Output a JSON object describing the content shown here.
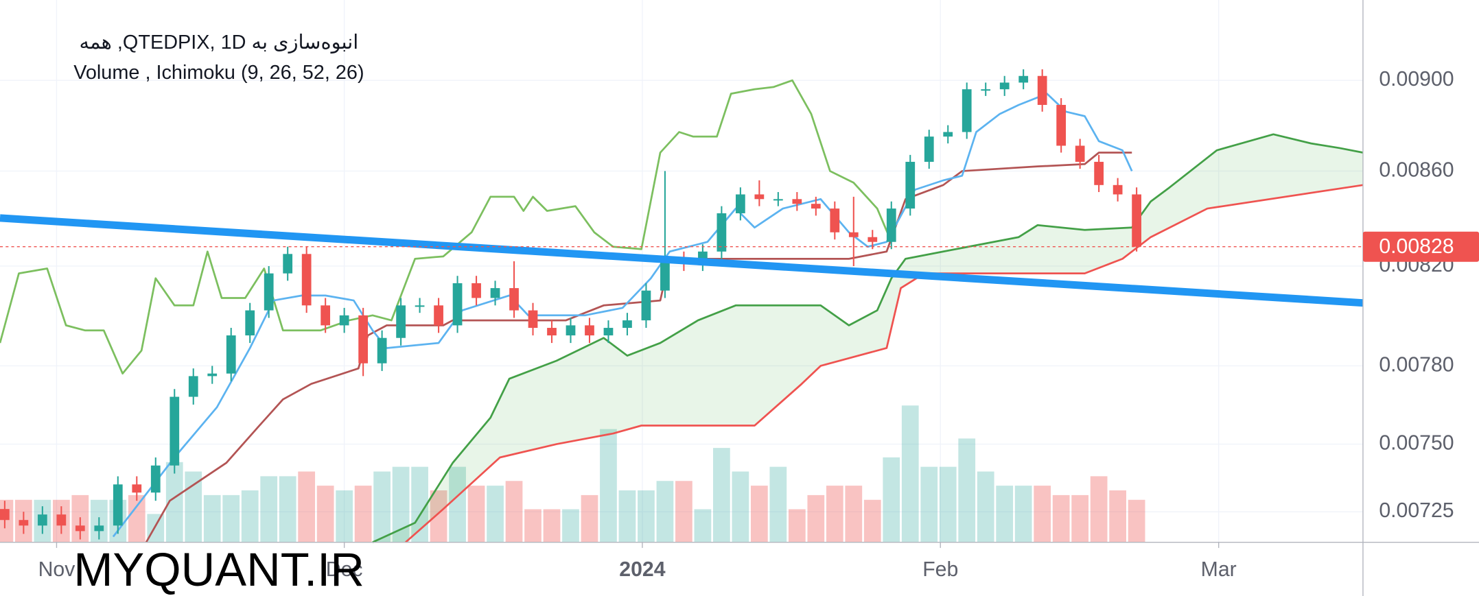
{
  "chart_data": {
    "type": "candlestick",
    "title": "انبوه‌سازی به QTEDPIX, 1D, همه",
    "subtitle": "Volume , Ichimoku (9, 26, 52, 26)",
    "watermark": "MYQUANT.IR",
    "log_scale": true,
    "grid": true,
    "xlim": [
      -0.25,
      72
    ],
    "ylim": [
      0.00714,
      0.00937
    ],
    "xticks": [
      {
        "value": 2.75,
        "label": "Nov"
      },
      {
        "value": 18,
        "label": "Dec"
      },
      {
        "value": 33.8,
        "label": "2024",
        "bold": true
      },
      {
        "value": 49.6,
        "label": "Feb"
      },
      {
        "value": 64.35,
        "label": "Mar"
      }
    ],
    "yticks": [
      0.00725,
      {
        "value": 0.0075,
        "label": "0.00750"
      },
      {
        "value": 0.0078,
        "label": "0.00780"
      },
      {
        "value": 0.0082,
        "label": "0.00820"
      },
      {
        "value": 0.0086,
        "label": "0.00860"
      },
      {
        "value": 0.009,
        "label": "0.00900"
      }
    ],
    "up_color": "#26a69a",
    "down_color": "#ef5350",
    "open": [
      0.00726,
      0.00722,
      0.0072,
      0.00724,
      0.0072,
      0.00718,
      0.0072,
      0.00735,
      0.00732,
      0.00742,
      0.00768,
      0.00776,
      0.00777,
      0.00792,
      0.00802,
      0.00817,
      0.00825,
      0.00804,
      0.00796,
      0.008,
      0.00781,
      0.00791,
      0.00804,
      0.00804,
      0.00796,
      0.00813,
      0.00807,
      0.00811,
      0.00802,
      0.00795,
      0.00792,
      0.00796,
      0.00792,
      0.00795,
      0.00798,
      0.0081,
      0.00823,
      0.00821,
      0.00826,
      0.00842,
      0.0085,
      0.00848,
      0.00848,
      0.00846,
      0.00844,
      0.00834,
      0.00832,
      0.0083,
      0.00844,
      0.00864,
      0.00875,
      0.00877,
      0.00896,
      0.00896,
      0.00899,
      0.00902,
      0.00889,
      0.00871,
      0.00864,
      0.00854,
      0.0085
    ],
    "high": [
      0.00729,
      0.00725,
      0.00727,
      0.00727,
      0.00723,
      0.00723,
      0.00738,
      0.00738,
      0.00745,
      0.00771,
      0.00779,
      0.0078,
      0.00795,
      0.00805,
      0.0082,
      0.00828,
      0.00828,
      0.00807,
      0.00803,
      0.00803,
      0.00794,
      0.00807,
      0.00807,
      0.00807,
      0.00816,
      0.00816,
      0.00814,
      0.00822,
      0.00805,
      0.00798,
      0.00799,
      0.00799,
      0.00798,
      0.00801,
      0.00813,
      0.0086,
      0.00826,
      0.00829,
      0.00845,
      0.00853,
      0.00856,
      0.00851,
      0.00851,
      0.00849,
      0.00847,
      0.00849,
      0.00835,
      0.00847,
      0.00867,
      0.00878,
      0.0088,
      0.00899,
      0.00899,
      0.00902,
      0.00905,
      0.00905,
      0.00892,
      0.00874,
      0.00867,
      0.00857,
      0.00853
    ],
    "low": [
      0.00719,
      0.00717,
      0.00717,
      0.00717,
      0.00715,
      0.00715,
      0.00717,
      0.00729,
      0.00729,
      0.00739,
      0.00765,
      0.00773,
      0.00774,
      0.00789,
      0.00799,
      0.00814,
      0.00801,
      0.00793,
      0.00793,
      0.00776,
      0.00778,
      0.00788,
      0.00801,
      0.00793,
      0.00793,
      0.00804,
      0.00804,
      0.00799,
      0.00792,
      0.00789,
      0.00789,
      0.00789,
      0.00789,
      0.00792,
      0.00795,
      0.00807,
      0.00818,
      0.00818,
      0.00823,
      0.00839,
      0.00845,
      0.00845,
      0.00843,
      0.00841,
      0.00831,
      0.0082,
      0.00827,
      0.00827,
      0.00841,
      0.00861,
      0.00872,
      0.00874,
      0.00893,
      0.00893,
      0.00896,
      0.00886,
      0.00868,
      0.00861,
      0.00851,
      0.00847,
      0.00826
    ],
    "close": [
      0.00722,
      0.0072,
      0.00724,
      0.0072,
      0.00718,
      0.0072,
      0.00735,
      0.00732,
      0.00742,
      0.00768,
      0.00776,
      0.00777,
      0.00792,
      0.00802,
      0.00817,
      0.00825,
      0.00804,
      0.00796,
      0.008,
      0.00781,
      0.00791,
      0.00804,
      0.00804,
      0.00796,
      0.00813,
      0.00807,
      0.00811,
      0.00802,
      0.00795,
      0.00792,
      0.00796,
      0.00792,
      0.00795,
      0.00798,
      0.0081,
      0.00823,
      0.00821,
      0.00826,
      0.00842,
      0.0085,
      0.00848,
      0.00848,
      0.00846,
      0.00844,
      0.00834,
      0.00832,
      0.0083,
      0.00844,
      0.00864,
      0.00875,
      0.00877,
      0.00896,
      0.00896,
      0.00899,
      0.00902,
      0.00889,
      0.00871,
      0.00864,
      0.00854,
      0.0085,
      0.00828
    ],
    "volume": [
      45,
      45,
      45,
      45,
      50,
      45,
      45,
      50,
      30,
      85,
      75,
      50,
      50,
      55,
      70,
      70,
      75,
      60,
      55,
      60,
      75,
      80,
      80,
      55,
      80,
      60,
      60,
      65,
      35,
      35,
      35,
      50,
      120,
      55,
      55,
      65,
      65,
      35,
      100,
      75,
      60,
      80,
      35,
      50,
      60,
      60,
      45,
      90,
      145,
      80,
      80,
      110,
      75,
      60,
      60,
      60,
      50,
      50,
      70,
      55,
      45
    ],
    "last_price": 0.00828,
    "last_price_color": "#ef5350",
    "trendline": {
      "color": "#2196f3",
      "x": [
        -0.25,
        72
      ],
      "values": [
        0.0084,
        0.00805
      ]
    },
    "ichimoku": {
      "cloud_color": "#4caf50",
      "conversion": {
        "color": "#5cb3f0",
        "x": [
          5.75,
          9,
          11.25,
          13,
          14.25,
          15.75,
          17,
          18.5,
          19.5,
          20.25,
          23,
          24.25,
          26.75,
          27.75,
          30.75,
          32.75,
          34.25,
          35.25,
          37.25,
          38.75,
          39.75,
          41.25,
          43.25,
          44.75,
          45.75,
          46.75,
          48.25,
          49.75,
          50.75,
          51.5,
          52.75,
          53.75,
          55.25,
          56.25,
          57.25,
          58,
          59.25,
          59.75
        ],
        "values": [
          0.00716,
          0.00745,
          0.00764,
          0.00787,
          0.00806,
          0.00808,
          0.00808,
          0.00806,
          0.00794,
          0.00787,
          0.00789,
          0.00802,
          0.00808,
          0.008,
          0.008,
          0.00803,
          0.00815,
          0.00826,
          0.0083,
          0.00844,
          0.00836,
          0.00844,
          0.00848,
          0.00834,
          0.00828,
          0.0083,
          0.00852,
          0.00856,
          0.00858,
          0.00877,
          0.00885,
          0.00889,
          0.00894,
          0.00886,
          0.00884,
          0.00873,
          0.00869,
          0.0086
        ]
      },
      "base": {
        "color": "#b35454",
        "x": [
          7.5,
          8.75,
          11.75,
          13.5,
          14.75,
          16.25,
          18.75,
          19.25,
          20.25,
          23.25,
          23.75,
          29.75,
          31.75,
          34.75,
          35.25,
          44.75,
          46.75,
          47.75,
          49.75,
          50.75,
          54.75,
          57.25,
          58,
          59.75
        ],
        "values": [
          0.00714,
          0.00729,
          0.00743,
          0.00757,
          0.00767,
          0.00773,
          0.00779,
          0.00792,
          0.00796,
          0.00796,
          0.00798,
          0.00798,
          0.00804,
          0.00806,
          0.00823,
          0.00823,
          0.00826,
          0.00848,
          0.00854,
          0.0086,
          0.00862,
          0.00863,
          0.00868,
          0.00868
        ]
      },
      "span_a": {
        "color": "#43a047",
        "x": [
          19.5,
          21.75,
          23.75,
          25.75,
          26.75,
          29.25,
          31.75,
          33,
          34.75,
          36.75,
          38.75,
          43.25,
          44.75,
          46.25,
          47,
          47.75,
          49.75,
          51.75,
          53.75,
          54.75,
          57.25,
          59.75,
          60.75,
          61.75,
          64.25,
          67.25,
          69.25,
          70.75,
          72
        ],
        "values": [
          0.00714,
          0.00721,
          0.00743,
          0.0076,
          0.00775,
          0.00782,
          0.00791,
          0.00784,
          0.00789,
          0.00798,
          0.00804,
          0.00804,
          0.00796,
          0.00802,
          0.00815,
          0.00823,
          0.00826,
          0.00829,
          0.00832,
          0.00837,
          0.00835,
          0.00836,
          0.00847,
          0.00853,
          0.00869,
          0.00876,
          0.00872,
          0.0087,
          0.00868
        ]
      },
      "span_b": {
        "color": "#ef5350",
        "x": [
          21.25,
          23.25,
          26.25,
          29.25,
          32.25,
          33.75,
          39.75,
          42.25,
          43.25,
          46.75,
          47.5,
          48.75,
          57.25,
          59.25,
          60.75,
          63.75,
          72
        ],
        "values": [
          0.00714,
          0.00726,
          0.00745,
          0.0075,
          0.00754,
          0.00757,
          0.00757,
          0.00773,
          0.0078,
          0.00787,
          0.00811,
          0.00817,
          0.00817,
          0.00823,
          0.00832,
          0.00844,
          0.00854
        ]
      },
      "lagging": {
        "color": "#7cbf5f",
        "x": [
          -0.25,
          0.75,
          2.25,
          3.25,
          4.25,
          5.25,
          6.25,
          7.25,
          8,
          9,
          10,
          10.75,
          11.5,
          12.75,
          13.75,
          14.75,
          16.75,
          18.25,
          19.5,
          20.5,
          21.75,
          23.25,
          24.75,
          25.75,
          27,
          27.5,
          28,
          28.75,
          30.25,
          31.25,
          32.25,
          33.75,
          34.75,
          35.75,
          36.5,
          37.75,
          38.5,
          39.75,
          40.75,
          41.75,
          42.75,
          43.75,
          45,
          46.25,
          47
        ],
        "values": [
          0.00789,
          0.00817,
          0.00819,
          0.00796,
          0.00794,
          0.00794,
          0.00777,
          0.00786,
          0.00815,
          0.00804,
          0.00804,
          0.00826,
          0.00807,
          0.00807,
          0.00819,
          0.00794,
          0.00794,
          0.00798,
          0.008,
          0.00798,
          0.00823,
          0.00824,
          0.00834,
          0.00849,
          0.00849,
          0.00843,
          0.00849,
          0.00843,
          0.00845,
          0.00834,
          0.00828,
          0.00827,
          0.00868,
          0.00877,
          0.00875,
          0.00875,
          0.00894,
          0.00896,
          0.00897,
          0.009,
          0.00885,
          0.0086,
          0.00855,
          0.00844,
          0.0083
        ]
      }
    }
  }
}
